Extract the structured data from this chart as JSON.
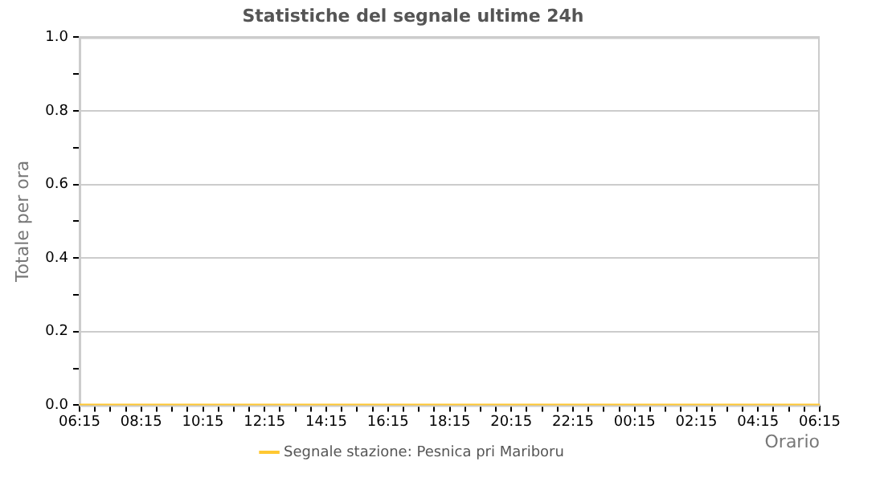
{
  "chart_data": {
    "type": "line",
    "title": "Statistiche del segnale ultime 24h",
    "xlabel": "Orario",
    "ylabel": "Totale per ora",
    "categories": [
      "06:15",
      null,
      null,
      null,
      "08:15",
      null,
      null,
      null,
      "10:15",
      null,
      null,
      null,
      "12:15",
      null,
      null,
      null,
      "14:15",
      null,
      null,
      null,
      "16:15",
      null,
      null,
      null,
      "18:15",
      null,
      null,
      null,
      "20:15",
      null,
      null,
      null,
      "22:15",
      null,
      null,
      null,
      "00:15",
      null,
      null,
      null,
      "02:15",
      null,
      null,
      null,
      "04:15",
      null,
      null,
      null,
      "06:15"
    ],
    "series": [
      {
        "name": "Segnale stazione: Pesnica pri Mariboru",
        "color": "#ffc832",
        "values": [
          0,
          0,
          0,
          0,
          0,
          0,
          0,
          0,
          0,
          0,
          0,
          0,
          0,
          0,
          0,
          0,
          0,
          0,
          0,
          0,
          0,
          0,
          0,
          0,
          0,
          0,
          0,
          0,
          0,
          0,
          0,
          0,
          0,
          0,
          0,
          0,
          0,
          0,
          0,
          0,
          0,
          0,
          0,
          0,
          0,
          0,
          0,
          0,
          0
        ]
      }
    ],
    "ylim": [
      0,
      1
    ],
    "yticks": [
      {
        "value": 0,
        "label": "0.0"
      },
      {
        "value": 0.1,
        "label": null
      },
      {
        "value": 0.2,
        "label": "0.2"
      },
      {
        "value": 0.3,
        "label": null
      },
      {
        "value": 0.4,
        "label": "0.4"
      },
      {
        "value": 0.5,
        "label": null
      },
      {
        "value": 0.6,
        "label": "0.6"
      },
      {
        "value": 0.7,
        "label": null
      },
      {
        "value": 0.8,
        "label": "0.8"
      },
      {
        "value": 0.9,
        "label": null
      },
      {
        "value": 1,
        "label": "1.0"
      }
    ],
    "grid": "y",
    "legend": "bottom",
    "marker": "none",
    "line_style": "solid"
  }
}
